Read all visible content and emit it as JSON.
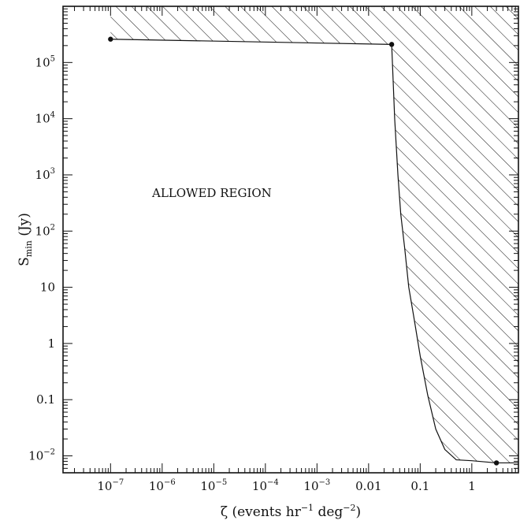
{
  "chart_data": {
    "type": "line",
    "title": "",
    "xlabel": "ζ (events hr⁻¹ deg⁻²)",
    "ylabel": "Smin (Jy)",
    "xscale": "log",
    "yscale": "log",
    "xlim": [
      1.2e-08,
      8
    ],
    "ylim": [
      0.005,
      1000000
    ],
    "grid": false,
    "legend": "none",
    "annotation": "ALLOWED REGION",
    "boundary": {
      "name": "",
      "x": [
        1e-07,
        0.028,
        0.032,
        0.037,
        0.042,
        0.05,
        0.06,
        0.075,
        0.1,
        0.14,
        0.2,
        0.3,
        0.5,
        1,
        3
      ],
      "y": [
        260000,
        210000,
        10000,
        1000,
        200,
        50,
        10,
        3,
        0.6,
        0.12,
        0.03,
        0.013,
        0.0085,
        0.0082,
        0.0075
      ]
    },
    "markers": [
      {
        "x": 1e-07,
        "y": 260000
      },
      {
        "x": 0.028,
        "y": 210000
      },
      {
        "x": 3,
        "y": 0.0075
      }
    ],
    "x_ticks": [
      {
        "value": 1e-07,
        "base": "10",
        "exp": "−7"
      },
      {
        "value": 1e-06,
        "base": "10",
        "exp": "−6"
      },
      {
        "value": 1e-05,
        "base": "10",
        "exp": "−5"
      },
      {
        "value": 0.0001,
        "base": "10",
        "exp": "−4"
      },
      {
        "value": 0.001,
        "base": "10",
        "exp": "−3"
      },
      {
        "value": 0.01,
        "base": "0.01",
        "exp": ""
      },
      {
        "value": 0.1,
        "base": "0.1",
        "exp": ""
      },
      {
        "value": 1,
        "base": "1",
        "exp": ""
      }
    ],
    "y_ticks": [
      {
        "value": 0.01,
        "base": "10",
        "exp": "−2"
      },
      {
        "value": 0.1,
        "base": "0.1",
        "exp": ""
      },
      {
        "value": 1,
        "base": "1",
        "exp": ""
      },
      {
        "value": 10,
        "base": "10",
        "exp": ""
      },
      {
        "value": 100,
        "base": "10",
        "exp": "2"
      },
      {
        "value": 1000,
        "base": "10",
        "exp": "3"
      },
      {
        "value": 10000,
        "base": "10",
        "exp": "4"
      },
      {
        "value": 100000,
        "base": "10",
        "exp": "5"
      }
    ],
    "colors": {
      "line": "#111111",
      "hatch": "#111111",
      "background": "#ffffff"
    }
  }
}
